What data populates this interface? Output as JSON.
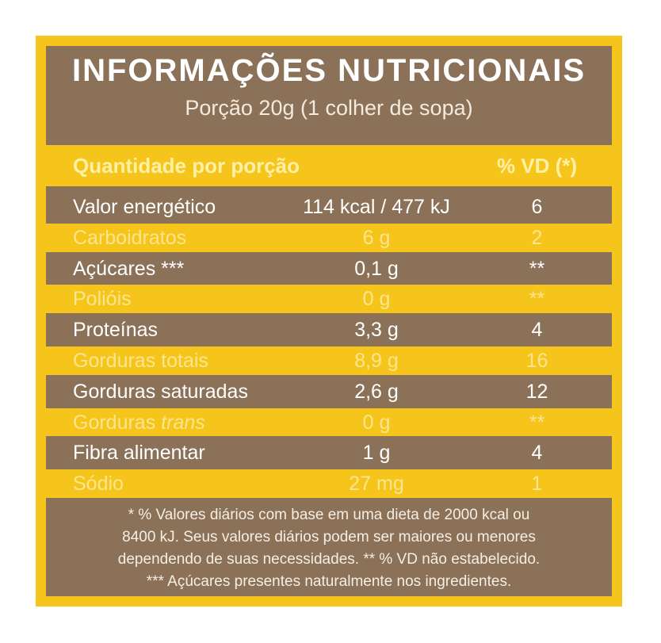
{
  "title": "INFORMAÇÕES NUTRICIONAIS",
  "subtitle": "Porção 20g (1 colher de sopa)",
  "header": {
    "quantity": "Quantidade por porção",
    "vd": "% VD (*)"
  },
  "rows": [
    {
      "name": "Valor energético",
      "amount": "114 kcal / 477 kJ",
      "vd": "6"
    },
    {
      "name": "Carboidratos",
      "amount": "6 g",
      "vd": "2"
    },
    {
      "name": "Açúcares ***",
      "amount": "0,1 g",
      "vd": "**"
    },
    {
      "name": "Polióis",
      "amount": "0 g",
      "vd": "**"
    },
    {
      "name": "Proteínas",
      "amount": "3,3 g",
      "vd": "4"
    },
    {
      "name": "Gorduras totais",
      "amount": "8,9 g",
      "vd": "16"
    },
    {
      "name": "Gorduras saturadas",
      "amount": "2,6 g",
      "vd": "12"
    },
    {
      "name": "Gorduras",
      "name_italic": "trans",
      "amount": "0 g",
      "vd": "**"
    },
    {
      "name": "Fibra alimentar",
      "amount": "1 g",
      "vd": "4"
    },
    {
      "name": "Sódio",
      "amount": "27 mg",
      "vd": "1"
    }
  ],
  "footnotes": [
    "* % Valores diários com base em uma dieta de 2000 kcal ou",
    "8400 kJ. Seus valores diários podem ser maiores ou menores",
    "dependendo de suas necessidades. ** % VD não estabelecido.",
    "*** Açúcares presentes naturalmente nos ingredientes."
  ]
}
